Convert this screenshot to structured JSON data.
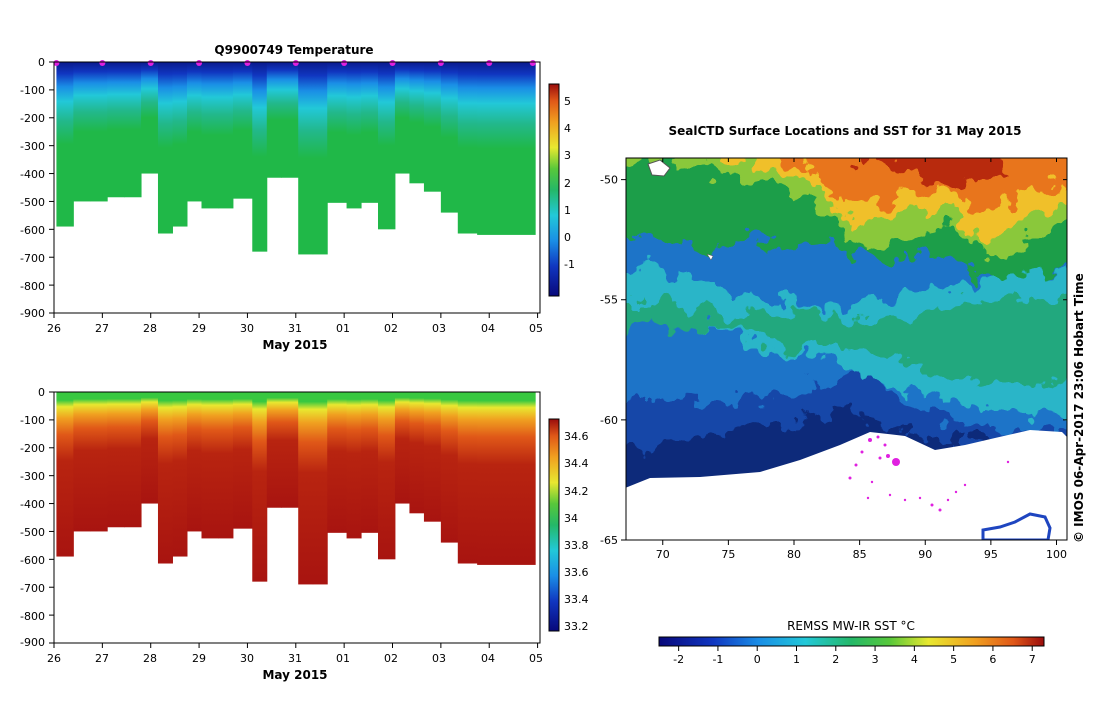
{
  "chart_data": [
    {
      "type": "heatmap",
      "title": "Q9900749  Temperature",
      "variable": "temperature",
      "xlabel": "May 2015",
      "ylabel": "",
      "x_ticks": [
        "26",
        "27",
        "28",
        "29",
        "30",
        "31",
        "01",
        "02",
        "03",
        "04",
        "05"
      ],
      "y_ticks": [
        "0",
        "-100",
        "-200",
        "-300",
        "-400",
        "-500",
        "-600",
        "-700",
        "-800",
        "-900"
      ],
      "ylim": [
        -900,
        0
      ],
      "colorbar": {
        "min": -2,
        "max": 5.8,
        "ticks": [
          "5",
          "4",
          "3",
          "2",
          "1",
          "0",
          "-1"
        ],
        "tick_values": [
          5,
          4,
          3,
          2,
          1,
          0,
          -1
        ]
      },
      "profile_days": [
        26.05,
        26.4,
        26.75,
        27.1,
        27.45,
        27.8,
        28.15,
        28.45,
        28.75,
        29.05,
        29.4,
        29.7,
        30.1,
        30.4,
        30.7,
        31.05,
        31.35,
        31.65,
        32.05,
        32.35,
        32.7,
        33.05,
        33.35,
        33.65,
        34.0,
        34.35,
        34.75
      ],
      "profile_depths_m": [
        -590,
        -500,
        -500,
        -485,
        -485,
        -400,
        -615,
        -590,
        -500,
        -525,
        -525,
        -490,
        -680,
        -415,
        -415,
        -690,
        -690,
        -505,
        -525,
        -505,
        -600,
        -400,
        -435,
        -465,
        -540,
        -615,
        -620
      ],
      "surface_markers_days": [
        26.05,
        27.0,
        28.0,
        29.0,
        30.0,
        31.0,
        32.0,
        33.0,
        34.0,
        35.0,
        35.9
      ]
    },
    {
      "type": "heatmap",
      "title": "",
      "variable": "salinity",
      "xlabel": "May 2015",
      "ylabel": "",
      "x_ticks": [
        "26",
        "27",
        "28",
        "29",
        "30",
        "31",
        "01",
        "02",
        "03",
        "04",
        "05"
      ],
      "y_ticks": [
        "0",
        "-100",
        "-200",
        "-300",
        "-400",
        "-500",
        "-600",
        "-700",
        "-800",
        "-900"
      ],
      "ylim": [
        -900,
        0
      ],
      "colorbar": {
        "min": 33.15,
        "max": 34.7,
        "ticks": [
          "34.6",
          "34.4",
          "34.2",
          "34",
          "33.8",
          "33.6",
          "33.4",
          "33.2"
        ],
        "tick_values": [
          34.6,
          34.4,
          34.2,
          34.0,
          33.8,
          33.6,
          33.4,
          33.2
        ]
      }
    },
    {
      "type": "heatmap",
      "title": "SealCTD Surface Locations and SST for 31 May 2015",
      "subtype": "map",
      "x_ticks": [
        "70",
        "75",
        "80",
        "85",
        "90",
        "95",
        "100"
      ],
      "x_values": [
        70,
        75,
        80,
        85,
        90,
        95,
        100
      ],
      "xlim": [
        67.2,
        100.8
      ],
      "y_ticks": [
        "-50",
        "-55",
        "-60",
        "-65"
      ],
      "y_values": [
        -50,
        -55,
        -60,
        -65
      ],
      "ylim": [
        -65,
        -49.1
      ],
      "colorbar": {
        "label": "REMSS MW-IR SST °C",
        "min": -2.5,
        "max": 7.3,
        "ticks": [
          "-2",
          "-1",
          "0",
          "1",
          "2",
          "3",
          "4",
          "5",
          "6",
          "7"
        ],
        "tick_values": [
          -2,
          -1,
          0,
          1,
          2,
          3,
          4,
          5,
          6,
          7
        ]
      },
      "credit": "© IMOS 06-Apr-2017 23:06 Hobart Time"
    }
  ]
}
